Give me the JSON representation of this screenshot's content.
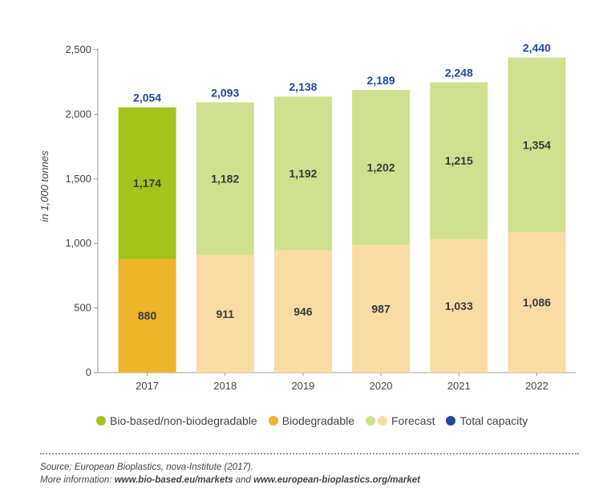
{
  "colors": {
    "bio_based_actual": "#a5c31d",
    "biodegradable_actual": "#eeb42b",
    "bio_based_forecast": "#cfe08f",
    "biodegradable_forecast": "#f9dca4",
    "total_capacity": "#1f4a9c",
    "axis": "#9a9a9a",
    "value_label": "#3a3a3a"
  },
  "chart_data": {
    "type": "bar",
    "stacked": true,
    "categories": [
      "2017",
      "2018",
      "2019",
      "2020",
      "2021",
      "2022"
    ],
    "series": [
      {
        "name": "Biodegradable",
        "values": [
          880,
          911,
          946,
          987,
          1033,
          1086
        ]
      },
      {
        "name": "Bio-based/non-biodegradable",
        "values": [
          1174,
          1182,
          1192,
          1202,
          1215,
          1354
        ]
      }
    ],
    "segment_labels": {
      "Biodegradable": [
        "880",
        "911",
        "946",
        "987",
        "1,033",
        "1,086"
      ],
      "Bio-based/non-biodegradable": [
        "1,174",
        "1,182",
        "1,192",
        "1,202",
        "1,215",
        "1,354"
      ]
    },
    "totals": [
      2054,
      2093,
      2138,
      2189,
      2248,
      2440
    ],
    "total_labels": [
      "2,054",
      "2,093",
      "2,138",
      "2,189",
      "2,248",
      "2,440"
    ],
    "forecast_categories": [
      "2018",
      "2019",
      "2020",
      "2021",
      "2022"
    ],
    "ylabel": "in 1,000 tonnes",
    "ylim": [
      0,
      2500
    ],
    "yticks": [
      0,
      500,
      1000,
      1500,
      2000,
      2500
    ],
    "ytick_labels": [
      "0",
      "500",
      "1,000",
      "1,500",
      "2,000",
      "2,500"
    ],
    "grid": false,
    "legend_position": "bottom"
  },
  "legend": {
    "bio_based": "Bio-based/non-biodegradable",
    "biodegradable": "Biodegradable",
    "forecast": "Forecast",
    "total_capacity": "Total capacity"
  },
  "source": {
    "line1": "Source: European Bioplastics, nova-Institute (2017).",
    "line2_prefix": "More information: ",
    "link1": "www.bio-based.eu/markets",
    "line2_join": " and ",
    "link2": "www.european-bioplastics.org/market"
  }
}
